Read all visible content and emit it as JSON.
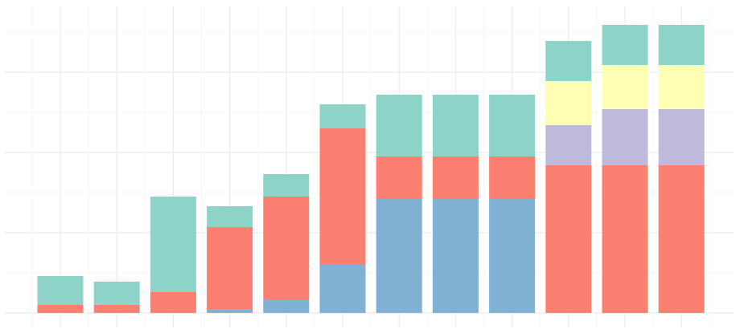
{
  "chart_data": {
    "type": "bar",
    "stacked": true,
    "grid": true,
    "ylim": [
      0,
      3.8
    ],
    "categories": [
      "",
      "",
      "",
      "",
      "",
      "",
      "",
      "",
      "",
      "",
      "",
      ""
    ],
    "series": [
      {
        "color": "#80b1d3",
        "values": [
          0,
          0,
          0,
          0.05,
          0.17,
          0.6,
          1.42,
          1.42,
          1.42,
          0,
          0,
          0
        ]
      },
      {
        "color": "#fb8072",
        "values": [
          0.1,
          0.1,
          0.26,
          1.02,
          1.28,
          1.7,
          0.53,
          0.53,
          0.53,
          1.84,
          1.84,
          1.84
        ]
      },
      {
        "color": "#bebada",
        "values": [
          0,
          0,
          0,
          0,
          0,
          0,
          0,
          0,
          0,
          0.5,
          0.7,
          0.7
        ]
      },
      {
        "color": "#ffffb3",
        "values": [
          0,
          0,
          0,
          0,
          0,
          0,
          0,
          0,
          0,
          0.55,
          0.55,
          0.55
        ]
      },
      {
        "color": "#8dd3c7",
        "values": [
          0.36,
          0.29,
          1.19,
          0.26,
          0.28,
          0.3,
          0.77,
          0.77,
          0.77,
          0.5,
          0.5,
          0.5
        ]
      }
    ]
  }
}
